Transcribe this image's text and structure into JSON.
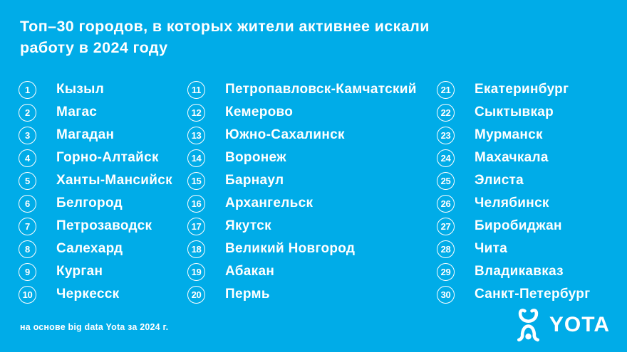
{
  "title": {
    "line1": "Топ–30 городов, в которых жители активнее искали",
    "line2": "работу в 2024 году"
  },
  "list": {
    "columns": [
      {
        "items": [
          {
            "rank": "1",
            "city": "Кызыл"
          },
          {
            "rank": "2",
            "city": "Магас"
          },
          {
            "rank": "3",
            "city": "Магадан"
          },
          {
            "rank": "4",
            "city": "Горно-Алтайск"
          },
          {
            "rank": "5",
            "city": "Ханты-Мансийск"
          },
          {
            "rank": "6",
            "city": "Белгород"
          },
          {
            "rank": "7",
            "city": "Петрозаводск"
          },
          {
            "rank": "8",
            "city": "Салехард"
          },
          {
            "rank": "9",
            "city": "Курган"
          },
          {
            "rank": "10",
            "city": "Черкесск"
          }
        ]
      },
      {
        "items": [
          {
            "rank": "11",
            "city": "Петропавловск-Камчатский"
          },
          {
            "rank": "12",
            "city": "Кемерово"
          },
          {
            "rank": "13",
            "city": "Южно-Сахалинск"
          },
          {
            "rank": "14",
            "city": "Воронеж"
          },
          {
            "rank": "15",
            "city": "Барнаул"
          },
          {
            "rank": "16",
            "city": "Архангельск"
          },
          {
            "rank": "17",
            "city": "Якутск"
          },
          {
            "rank": "18",
            "city": "Великий Новгород"
          },
          {
            "rank": "19",
            "city": "Абакан"
          },
          {
            "rank": "20",
            "city": "Пермь"
          }
        ]
      },
      {
        "items": [
          {
            "rank": "21",
            "city": "Екатеринбург"
          },
          {
            "rank": "22",
            "city": "Сыктывкар"
          },
          {
            "rank": "23",
            "city": "Мурманск"
          },
          {
            "rank": "24",
            "city": "Махачкала"
          },
          {
            "rank": "25",
            "city": "Элиста"
          },
          {
            "rank": "26",
            "city": "Челябинск"
          },
          {
            "rank": "27",
            "city": "Биробиджан"
          },
          {
            "rank": "28",
            "city": "Чита"
          },
          {
            "rank": "29",
            "city": "Владикавказ"
          },
          {
            "rank": "30",
            "city": "Санкт-Петербург"
          }
        ]
      }
    ]
  },
  "footer": {
    "source": "на основе big data Yota за 2024 г."
  },
  "logo": {
    "wordmark": "YOTA",
    "icon": "yota-figure-icon"
  },
  "colors": {
    "background": "#00ACE8",
    "text": "#FFFFFF"
  }
}
